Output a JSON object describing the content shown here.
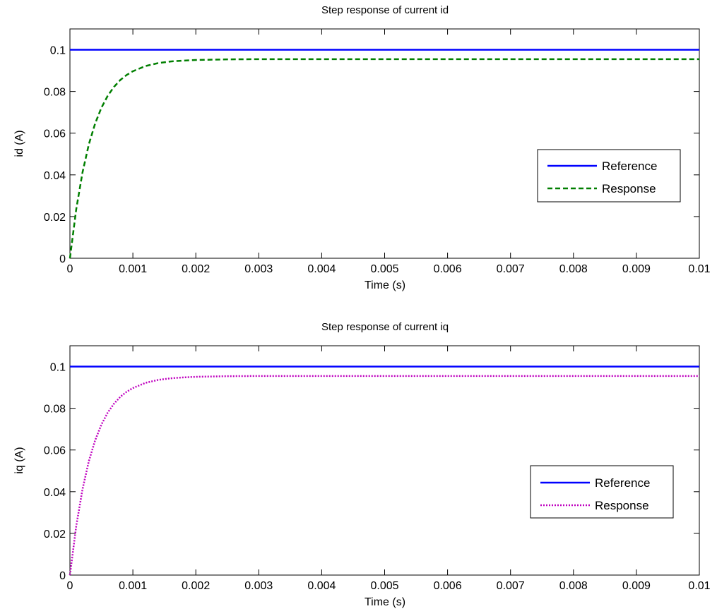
{
  "chart_data": [
    {
      "type": "line",
      "title": "Step response of current id",
      "xlabel": "Time (s)",
      "ylabel": "id (A)",
      "xlim": [
        0,
        0.01
      ],
      "ylim": [
        0,
        0.11
      ],
      "xticks": [
        0,
        0.001,
        0.002,
        0.003,
        0.004,
        0.005,
        0.006,
        0.007,
        0.008,
        0.009,
        0.01
      ],
      "xtick_labels": [
        "0",
        "0.001",
        "0.002",
        "0.003",
        "0.004",
        "0.005",
        "0.006",
        "0.007",
        "0.008",
        "0.009",
        "0.01"
      ],
      "yticks": [
        0,
        0.02,
        0.04,
        0.06,
        0.08,
        0.1
      ],
      "ytick_labels": [
        "0",
        "0.02",
        "0.04",
        "0.06",
        "0.08",
        "0.1"
      ],
      "grid": false,
      "legend_position": "center-right",
      "series": [
        {
          "name": "Reference",
          "color": "#0000ff",
          "line_style": "solid",
          "x": [
            0,
            0.01
          ],
          "y": [
            0.1,
            0.1
          ]
        },
        {
          "name": "Response",
          "color": "#007f00",
          "line_style": "dashed",
          "x": [
            0,
            0.0001,
            0.0002,
            0.0003,
            0.0004,
            0.0005,
            0.0006,
            0.0007,
            0.0008,
            0.0009,
            0.001,
            0.0012,
            0.0014,
            0.0016,
            0.0018,
            0.002,
            0.0025,
            0.003,
            0.004,
            0.005,
            0.006,
            0.007,
            0.008,
            0.009,
            0.01
          ],
          "y": [
            0,
            0.0235,
            0.0412,
            0.0546,
            0.0646,
            0.0722,
            0.0779,
            0.0822,
            0.0855,
            0.0879,
            0.0897,
            0.0922,
            0.0936,
            0.0944,
            0.0948,
            0.0951,
            0.0954,
            0.0955,
            0.0955,
            0.0955,
            0.0955,
            0.0955,
            0.0955,
            0.0955,
            0.0955
          ]
        }
      ]
    },
    {
      "type": "line",
      "title": "Step response of current iq",
      "xlabel": "Time (s)",
      "ylabel": "iq (A)",
      "xlim": [
        0,
        0.01
      ],
      "ylim": [
        0,
        0.11
      ],
      "xticks": [
        0,
        0.001,
        0.002,
        0.003,
        0.004,
        0.005,
        0.006,
        0.007,
        0.008,
        0.009,
        0.01
      ],
      "xtick_labels": [
        "0",
        "0.001",
        "0.002",
        "0.003",
        "0.004",
        "0.005",
        "0.006",
        "0.007",
        "0.008",
        "0.009",
        "0.01"
      ],
      "yticks": [
        0,
        0.02,
        0.04,
        0.06,
        0.08,
        0.1
      ],
      "ytick_labels": [
        "0",
        "0.02",
        "0.04",
        "0.06",
        "0.08",
        "0.1"
      ],
      "grid": false,
      "legend_position": "center-right",
      "series": [
        {
          "name": "Reference",
          "color": "#0000ff",
          "line_style": "solid",
          "x": [
            0,
            0.01
          ],
          "y": [
            0.1,
            0.1
          ]
        },
        {
          "name": "Response",
          "color": "#bf00bf",
          "line_style": "dotted",
          "x": [
            0,
            0.0001,
            0.0002,
            0.0003,
            0.0004,
            0.0005,
            0.0006,
            0.0007,
            0.0008,
            0.0009,
            0.001,
            0.0012,
            0.0014,
            0.0016,
            0.0018,
            0.002,
            0.0025,
            0.003,
            0.004,
            0.005,
            0.006,
            0.007,
            0.008,
            0.009,
            0.01
          ],
          "y": [
            0,
            0.0235,
            0.0412,
            0.0546,
            0.0646,
            0.0722,
            0.0779,
            0.0822,
            0.0855,
            0.0879,
            0.0897,
            0.0922,
            0.0936,
            0.0944,
            0.0948,
            0.0951,
            0.0954,
            0.0955,
            0.0955,
            0.0955,
            0.0955,
            0.0955,
            0.0955,
            0.0955,
            0.0955
          ]
        }
      ]
    }
  ]
}
